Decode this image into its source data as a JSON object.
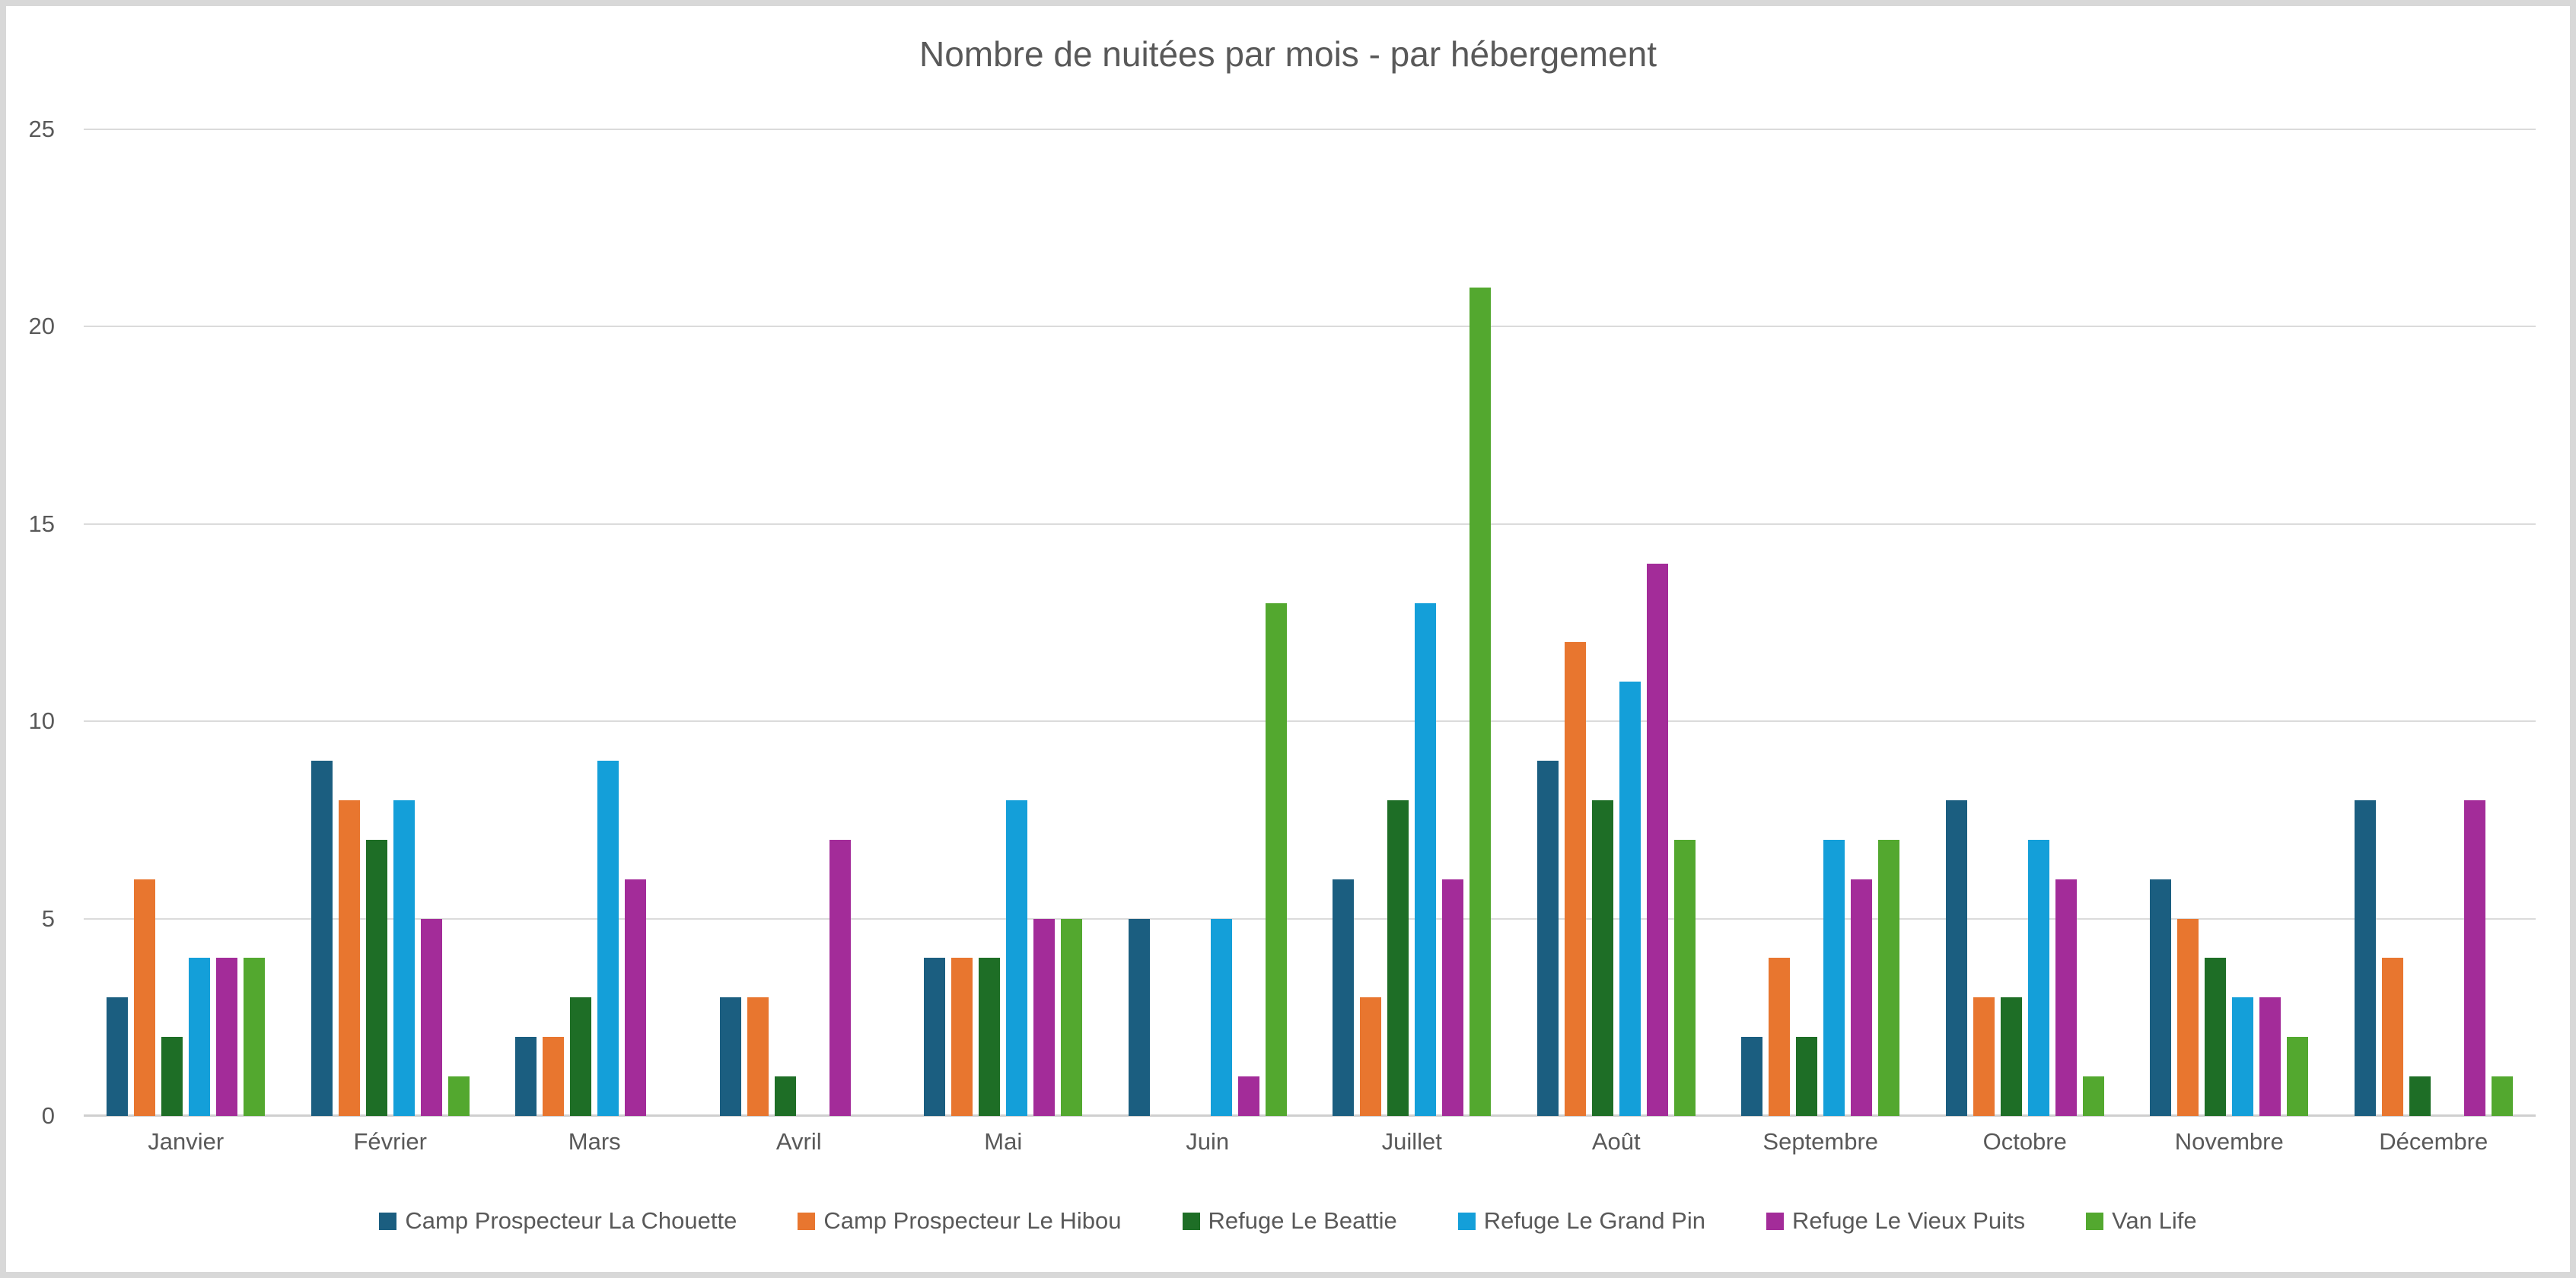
{
  "chart_data": {
    "type": "bar",
    "title": "Nombre de nuitées par mois - par hébergement",
    "categories": [
      "Janvier",
      "Février",
      "Mars",
      "Avril",
      "Mai",
      "Juin",
      "Juillet",
      "Août",
      "Septembre",
      "Octobre",
      "Novembre",
      "Décembre"
    ],
    "series": [
      {
        "name": "Camp Prospecteur La Chouette",
        "color": "#1B5E80",
        "values": [
          3,
          9,
          2,
          3,
          4,
          5,
          6,
          9,
          2,
          8,
          6,
          8
        ]
      },
      {
        "name": "Camp Prospecteur Le Hibou",
        "color": "#E8762F",
        "values": [
          6,
          8,
          2,
          3,
          4,
          0,
          3,
          12,
          4,
          3,
          5,
          4
        ]
      },
      {
        "name": "Refuge Le Beattie",
        "color": "#1E6E26",
        "values": [
          2,
          7,
          3,
          1,
          4,
          0,
          8,
          8,
          2,
          3,
          4,
          1
        ]
      },
      {
        "name": "Refuge Le Grand Pin",
        "color": "#149FD9",
        "values": [
          4,
          8,
          9,
          0,
          8,
          5,
          13,
          11,
          7,
          7,
          3,
          0
        ]
      },
      {
        "name": "Refuge Le Vieux Puits",
        "color": "#A32C99",
        "values": [
          4,
          5,
          6,
          7,
          5,
          1,
          6,
          14,
          6,
          6,
          3,
          8
        ]
      },
      {
        "name": "Van Life",
        "color": "#53A82F",
        "values": [
          4,
          1,
          0,
          0,
          5,
          13,
          21,
          7,
          7,
          1,
          2,
          1
        ]
      }
    ],
    "xlabel": "",
    "ylabel": "",
    "ylim": [
      0,
      25
    ],
    "yticks": [
      0,
      5,
      10,
      15,
      20,
      25
    ],
    "grid": true,
    "legend_position": "bottom",
    "text_color": "#595959",
    "gridline_color": "#DBDBDB",
    "axisline_color": "#CFCFCF",
    "background_color": "#FFFFFF",
    "frame_color": "#D8D8D8"
  }
}
